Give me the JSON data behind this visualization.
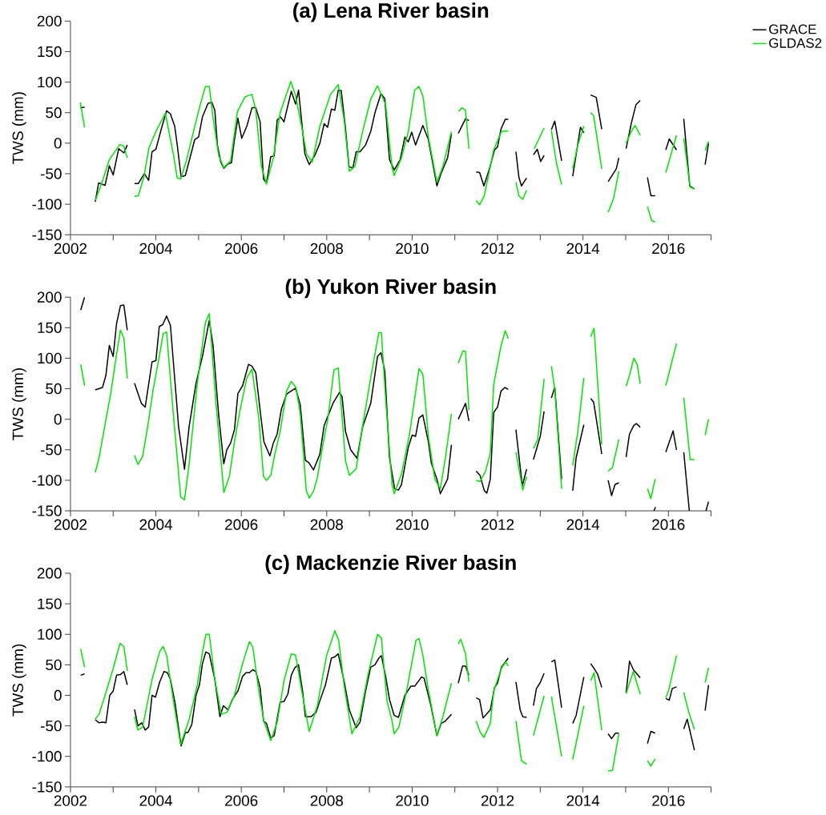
{
  "chart_data": [
    {
      "type": "line",
      "title": "(a) Lena River basin",
      "ylabel": "TWS (mm)",
      "xlim": [
        2002,
        2017
      ],
      "ylim": [
        -150,
        200
      ],
      "xticks": [
        2002,
        {
          "value": 2003,
          "label": null
        },
        2004,
        {
          "value": 2005,
          "label": null
        },
        2006,
        {
          "value": 2007,
          "label": null
        },
        2008,
        {
          "value": 2009,
          "label": null
        },
        2010,
        {
          "value": 2011,
          "label": null
        },
        2012,
        {
          "value": 2013,
          "label": null
        },
        2014,
        {
          "value": 2015,
          "label": null
        },
        2016,
        {
          "value": 2017,
          "label": null
        }
      ],
      "yticks": [
        -150,
        -100,
        -50,
        0,
        50,
        100,
        150,
        200
      ],
      "legend": "top right",
      "series": [
        {
          "name": "GRACE",
          "color": "#000000",
          "x": [
            2002.23,
            2002.33,
            2002.45,
            2002.58,
            2002.66,
            2002.81,
            2002.91,
            2003.0,
            2003.13,
            2003.25,
            2003.33,
            2003.42,
            2003.5,
            2003.59,
            2003.73,
            2003.83,
            2003.91,
            2004.0,
            2004.13,
            2004.25,
            2004.34,
            2004.44,
            2004.5,
            2004.59,
            2004.69,
            2004.78,
            2004.91,
            2005.0,
            2005.09,
            2005.22,
            2005.31,
            2005.38,
            2005.44,
            2005.52,
            2005.59,
            2005.69,
            2005.77,
            2005.84,
            2005.92,
            2006.01,
            2006.13,
            2006.25,
            2006.34,
            2006.44,
            2006.52,
            2006.59,
            2006.69,
            2006.77,
            2006.84,
            2006.92,
            2007.0,
            2007.17,
            2007.27,
            2007.34,
            2007.49,
            2007.59,
            2007.72,
            2007.84,
            2007.94,
            2008.02,
            2008.11,
            2008.19,
            2008.27,
            2008.34,
            2008.44,
            2008.52,
            2008.61,
            2008.69,
            2008.78,
            2008.91,
            2009.03,
            2009.13,
            2009.27,
            2009.36,
            2009.47,
            2009.58,
            2009.72,
            2009.83,
            2009.91,
            2009.99,
            2010.08,
            2010.25,
            2010.38,
            2010.58,
            2010.68,
            2010.83,
            2010.92,
            2011.0,
            2011.08,
            2011.25,
            2011.33,
            2011.42,
            2011.5,
            2011.58,
            2011.68,
            2011.81,
            2011.93,
            2012.0,
            2012.08,
            2012.18,
            2012.25,
            2012.34,
            2012.43,
            2012.5,
            2012.56,
            2012.68,
            2012.76,
            2012.84,
            2012.93,
            2013.01,
            2013.09,
            2013.18,
            2013.26,
            2013.34,
            2013.5,
            2013.63,
            2013.76,
            2013.94,
            2014.02,
            2014.1,
            2014.18,
            2014.31,
            2014.44,
            2014.52,
            2014.59,
            2014.78,
            2014.84,
            2014.93,
            2015.01,
            2015.13,
            2015.24,
            2015.34,
            2015.43,
            2015.51,
            2015.59,
            2015.69,
            2015.82,
            2015.94,
            2016.02,
            2016.19,
            2016.28,
            2016.36,
            2016.5,
            2016.61,
            2016.74,
            2016.86,
            2016.94
          ],
          "values": [
            58,
            59,
            null,
            -96,
            -65,
            -69,
            -37,
            -52,
            -9,
            -16,
            -3,
            null,
            -66,
            -66,
            -50,
            -61,
            -14,
            -10,
            24,
            53,
            48,
            28,
            -3,
            -55,
            -53,
            -29,
            6,
            10,
            43,
            65,
            67,
            54,
            -3,
            -31,
            -41,
            -34,
            -32,
            6,
            41,
            8,
            28,
            58,
            58,
            35,
            -59,
            -65,
            -22,
            -21,
            38,
            43,
            35,
            85,
            64,
            87,
            -18,
            -35,
            -20,
            0,
            32,
            26,
            56,
            54,
            87,
            86,
            24,
            -38,
            -41,
            -14,
            -14,
            -3,
            19,
            50,
            81,
            73,
            -27,
            -44,
            -27,
            10,
            2,
            18,
            -3,
            29,
            6,
            -70,
            -49,
            -24,
            15,
            null,
            16,
            40,
            37,
            null,
            -47,
            -48,
            -70,
            -42,
            -11,
            -6,
            23,
            39,
            39,
            null,
            -14,
            -56,
            -70,
            -57,
            null,
            -19,
            -10,
            -30,
            -20,
            null,
            22,
            36,
            -29,
            null,
            -54,
            26,
            17,
            null,
            79,
            75,
            23,
            null,
            -63,
            -42,
            -24,
            null,
            -9,
            32,
            63,
            70,
            null,
            -56,
            -86,
            -86,
            null,
            -11,
            7,
            -11,
            null,
            40,
            -70,
            -75,
            null,
            -35,
            0
          ]
        },
        {
          "name": "GLDAS2",
          "color": "#00e600",
          "x": [
            2002.23,
            2002.33,
            2002.45,
            2002.58,
            2002.72,
            2002.91,
            2003.16,
            2003.25,
            2003.33,
            2003.42,
            2003.5,
            2003.59,
            2003.72,
            2003.84,
            2004.0,
            2004.22,
            2004.28,
            2004.41,
            2004.5,
            2004.58,
            2004.72,
            2004.88,
            2005.03,
            2005.16,
            2005.25,
            2005.34,
            2005.47,
            2005.59,
            2005.75,
            2005.91,
            2006.09,
            2006.25,
            2006.34,
            2006.47,
            2006.59,
            2006.75,
            2006.91,
            2007.16,
            2007.27,
            2007.41,
            2007.53,
            2007.66,
            2007.84,
            2008.09,
            2008.27,
            2008.41,
            2008.53,
            2008.66,
            2008.84,
            2009.03,
            2009.19,
            2009.38,
            2009.53,
            2009.58,
            2009.75,
            2009.91,
            2010.06,
            2010.16,
            2010.25,
            2010.38,
            2010.58,
            2010.72,
            2010.92,
            2011.0,
            2011.09,
            2011.16,
            2011.25,
            2011.33,
            2011.42,
            2011.5,
            2011.58,
            2011.69,
            2011.91,
            2012.09,
            2012.25,
            2012.34,
            2012.43,
            2012.5,
            2012.59,
            2012.68,
            2012.76,
            2012.86,
            2013.09,
            2013.18,
            2013.26,
            2013.38,
            2013.5,
            2013.63,
            2013.76,
            2013.88,
            2014.02,
            2014.1,
            2014.18,
            2014.25,
            2014.44,
            2014.52,
            2014.59,
            2014.72,
            2014.84,
            2014.93,
            2015.01,
            2015.13,
            2015.22,
            2015.34,
            2015.43,
            2015.51,
            2015.61,
            2015.69,
            2015.82,
            2015.94,
            2016.19,
            2016.28,
            2016.36,
            2016.51,
            2016.61,
            2016.74,
            2016.86,
            2016.94
          ],
          "values": [
            67,
            26,
            null,
            -94,
            -68,
            -27,
            -2,
            -5,
            -24,
            null,
            -87,
            -86,
            -55,
            -7,
            19,
            49,
            28,
            -18,
            -57,
            -59,
            -27,
            19,
            61,
            93,
            93,
            41,
            -20,
            -40,
            -29,
            52,
            76,
            80,
            54,
            -38,
            -67,
            -24,
            50,
            101,
            78,
            28,
            -18,
            -31,
            28,
            80,
            96,
            37,
            -46,
            -38,
            19,
            72,
            94,
            63,
            -40,
            -53,
            -24,
            19,
            87,
            93,
            78,
            10,
            -64,
            -38,
            19,
            null,
            52,
            58,
            54,
            -9,
            null,
            -94,
            -101,
            -86,
            -11,
            19,
            20,
            null,
            -64,
            -86,
            -92,
            -77,
            null,
            -9,
            25,
            null,
            21,
            -33,
            -68,
            null,
            -42,
            -3,
            28,
            null,
            50,
            45,
            -42,
            null,
            -113,
            -90,
            -46,
            null,
            0,
            19,
            29,
            13,
            null,
            -104,
            -127,
            -129,
            null,
            -48,
            13,
            null,
            8,
            -72,
            -75,
            null,
            -12,
            3
          ]
        }
      ]
    },
    {
      "type": "line",
      "title": "(b) Yukon River basin",
      "ylabel": "TWS (mm)",
      "xlim": [
        2002,
        2017
      ],
      "ylim": [
        -150,
        200
      ],
      "xticks": [
        2002,
        {
          "value": 2003,
          "label": null
        },
        2004,
        {
          "value": 2005,
          "label": null
        },
        2006,
        {
          "value": 2007,
          "label": null
        },
        2008,
        {
          "value": 2009,
          "label": null
        },
        2010,
        {
          "value": 2011,
          "label": null
        },
        2012,
        {
          "value": 2013,
          "label": null
        },
        2014,
        {
          "value": 2015,
          "label": null
        },
        2016,
        {
          "value": 2017,
          "label": null
        }
      ],
      "yticks": [
        -150,
        -100,
        -50,
        0,
        50,
        100,
        150,
        200
      ],
      "series": [
        {
          "color": "#000000",
          "x": [
            2002.24,
            2002.33,
            2002.45,
            2002.58,
            2002.75,
            2002.83,
            2002.91,
            2003.0,
            2003.08,
            2003.17,
            2003.25,
            2003.33,
            2003.42,
            2003.5,
            2003.66,
            2003.75,
            2003.91,
            2004.0,
            2004.08,
            2004.16,
            2004.25,
            2004.34,
            2004.53,
            2004.67,
            2004.78,
            2004.94,
            2005.09,
            2005.25,
            2005.34,
            2005.47,
            2005.59,
            2005.66,
            2005.75,
            2005.84,
            2005.92,
            2006.03,
            2006.17,
            2006.25,
            2006.34,
            2006.44,
            2006.53,
            2006.67,
            2006.75,
            2006.84,
            2006.94,
            2007.06,
            2007.16,
            2007.27,
            2007.38,
            2007.5,
            2007.58,
            2007.69,
            2007.84,
            2007.94,
            2008.16,
            2008.3,
            2008.36,
            2008.44,
            2008.56,
            2008.71,
            2008.84,
            2009.03,
            2009.19,
            2009.27,
            2009.36,
            2009.47,
            2009.59,
            2009.68,
            2009.75,
            2009.91,
            2010.0,
            2010.08,
            2010.16,
            2010.25,
            2010.38,
            2010.45,
            2010.58,
            2010.66,
            2010.83,
            2010.92,
            2011.0,
            2011.08,
            2011.25,
            2011.33,
            2011.42,
            2011.5,
            2011.59,
            2011.69,
            2011.75,
            2011.83,
            2011.91,
            2012.0,
            2012.08,
            2012.17,
            2012.25,
            2012.34,
            2012.43,
            2012.58,
            2012.68,
            2012.76,
            2012.84,
            2013.0,
            2013.09,
            2013.18,
            2013.26,
            2013.34,
            2013.5,
            2013.63,
            2013.76,
            2013.84,
            2014.02,
            2014.1,
            2014.18,
            2014.25,
            2014.44,
            2014.52,
            2014.59,
            2014.67,
            2014.75,
            2014.84,
            2014.93,
            2015.01,
            2015.09,
            2015.19,
            2015.25,
            2015.34,
            2015.5,
            2015.66,
            2015.7,
            2015.82,
            2015.94,
            2016.11,
            2016.19,
            2016.28,
            2016.36,
            2016.49,
            2016.7,
            2016.88,
            2016.94
          ],
          "values": [
            179,
            200,
            null,
            48,
            52,
            72,
            121,
            103,
            157,
            186,
            187,
            146,
            null,
            59,
            26,
            20,
            94,
            96,
            152,
            155,
            169,
            154,
            -11,
            -82,
            -11,
            59,
            103,
            162,
            120,
            7,
            -73,
            -50,
            -39,
            -17,
            42,
            55,
            90,
            87,
            76,
            15,
            -37,
            -60,
            -39,
            -24,
            17,
            41,
            46,
            51,
            24,
            -67,
            -71,
            -83,
            -57,
            -10,
            28,
            44,
            37,
            -20,
            -50,
            -64,
            -13,
            26,
            103,
            109,
            79,
            -63,
            -114,
            -116,
            -107,
            -46,
            -26,
            -28,
            2,
            7,
            -37,
            -72,
            -98,
            -122,
            -98,
            -42,
            null,
            0,
            26,
            -3,
            null,
            -85,
            -92,
            -117,
            -121,
            -98,
            11,
            20,
            46,
            52,
            49,
            null,
            -17,
            -109,
            -82,
            null,
            -66,
            -28,
            13,
            null,
            35,
            52,
            -98,
            null,
            -117,
            -63,
            -9,
            null,
            34,
            28,
            -57,
            null,
            -100,
            -125,
            -107,
            -104,
            null,
            -62,
            -24,
            -10,
            -7,
            -13,
            null,
            -150,
            -144,
            null,
            -54,
            -19,
            -50,
            null,
            -54,
            -150,
            null,
            -150,
            -135
          ]
        },
        {
          "color": "#00e600",
          "x": [
            2002.24,
            2002.33,
            2002.45,
            2002.58,
            2002.67,
            2002.78,
            2002.94,
            2003.08,
            2003.17,
            2003.25,
            2003.33,
            2003.42,
            2003.5,
            2003.58,
            2003.69,
            2003.81,
            2003.94,
            2004.09,
            2004.17,
            2004.25,
            2004.41,
            2004.58,
            2004.67,
            2004.78,
            2004.97,
            2005.16,
            2005.25,
            2005.41,
            2005.59,
            2005.72,
            2005.84,
            2005.97,
            2006.13,
            2006.25,
            2006.41,
            2006.52,
            2006.59,
            2006.69,
            2006.78,
            2006.91,
            2007.06,
            2007.17,
            2007.28,
            2007.38,
            2007.52,
            2007.59,
            2007.69,
            2007.78,
            2007.91,
            2008.03,
            2008.17,
            2008.27,
            2008.44,
            2008.53,
            2008.69,
            2008.84,
            2009.03,
            2009.22,
            2009.28,
            2009.38,
            2009.53,
            2009.58,
            2009.75,
            2009.94,
            2010.16,
            2010.25,
            2010.38,
            2010.53,
            2010.66,
            2010.78,
            2010.92,
            2011.0,
            2011.08,
            2011.19,
            2011.25,
            2011.33,
            2011.42,
            2011.5,
            2011.59,
            2011.72,
            2011.83,
            2011.91,
            2012.08,
            2012.18,
            2012.25,
            2012.34,
            2012.43,
            2012.5,
            2012.59,
            2012.68,
            2012.76,
            2012.84,
            2012.94,
            2013.09,
            2013.18,
            2013.26,
            2013.34,
            2013.5,
            2013.63,
            2013.76,
            2013.88,
            2014.02,
            2014.1,
            2014.18,
            2014.26,
            2014.44,
            2014.52,
            2014.59,
            2014.69,
            2014.84,
            2014.93,
            2015.01,
            2015.09,
            2015.19,
            2015.27,
            2015.34,
            2015.43,
            2015.51,
            2015.59,
            2015.69,
            2015.82,
            2015.94,
            2016.19,
            2016.28,
            2016.36,
            2016.51,
            2016.61,
            2016.74,
            2016.86,
            2016.94
          ],
          "values": [
            90,
            55,
            null,
            -87,
            -63,
            -20,
            41,
            107,
            146,
            133,
            67,
            null,
            -59,
            -74,
            -61,
            -11,
            50,
            107,
            140,
            143,
            7,
            -127,
            -132,
            -72,
            59,
            159,
            173,
            24,
            -120,
            -94,
            -37,
            15,
            68,
            82,
            2,
            -94,
            -100,
            -92,
            -59,
            -20,
            46,
            62,
            52,
            9,
            -116,
            -129,
            -118,
            -96,
            -42,
            2,
            81,
            84,
            -68,
            -92,
            -81,
            -11,
            68,
            142,
            142,
            33,
            -107,
            -122,
            -90,
            -24,
            83,
            74,
            -28,
            -98,
            -114,
            -63,
            9,
            null,
            92,
            112,
            111,
            15,
            null,
            -100,
            -102,
            -85,
            -55,
            57,
            120,
            145,
            132,
            null,
            -54,
            -81,
            -116,
            -94,
            null,
            -48,
            -33,
            66,
            null,
            87,
            50,
            -114,
            null,
            -76,
            -20,
            68,
            null,
            135,
            149,
            -41,
            null,
            -85,
            -79,
            -33,
            null,
            54,
            72,
            100,
            90,
            58,
            null,
            -114,
            -130,
            -98,
            null,
            55,
            124,
            null,
            35,
            -66,
            -66,
            null,
            -26,
            0
          ]
        }
      ]
    },
    {
      "type": "line",
      "title": "(c) Mackenzie River basin",
      "ylabel": "TWS (mm)",
      "xlim": [
        2002,
        2017
      ],
      "ylim": [
        -150,
        200
      ],
      "xticks": [
        2002,
        {
          "value": 2003,
          "label": null
        },
        2004,
        {
          "value": 2005,
          "label": null
        },
        2006,
        {
          "value": 2007,
          "label": null
        },
        2008,
        {
          "value": 2009,
          "label": null
        },
        2010,
        {
          "value": 2011,
          "label": null
        },
        2012,
        {
          "value": 2013,
          "label": null
        },
        2014,
        {
          "value": 2015,
          "label": null
        },
        2016,
        {
          "value": 2017,
          "label": null
        }
      ],
      "yticks": [
        -150,
        -100,
        -50,
        0,
        50,
        100,
        150,
        200
      ],
      "series": [
        {
          "color": "#000000",
          "x": [
            2002.24,
            2002.33,
            2002.45,
            2002.58,
            2002.67,
            2002.75,
            2002.83,
            2002.92,
            2003.0,
            2003.08,
            2003.17,
            2003.25,
            2003.33,
            2003.42,
            2003.5,
            2003.58,
            2003.67,
            2003.75,
            2003.83,
            2003.91,
            2003.99,
            2004.09,
            2004.19,
            2004.27,
            2004.34,
            2004.45,
            2004.59,
            2004.69,
            2004.75,
            2004.84,
            2004.94,
            2005.02,
            2005.09,
            2005.17,
            2005.25,
            2005.38,
            2005.5,
            2005.58,
            2005.69,
            2005.79,
            2005.92,
            2006.03,
            2006.11,
            2006.19,
            2006.27,
            2006.34,
            2006.44,
            2006.52,
            2006.59,
            2006.69,
            2006.77,
            2006.91,
            2007.0,
            2007.09,
            2007.17,
            2007.25,
            2007.34,
            2007.44,
            2007.5,
            2007.63,
            2007.75,
            2007.84,
            2007.97,
            2008.11,
            2008.19,
            2008.27,
            2008.41,
            2008.53,
            2008.69,
            2008.78,
            2008.91,
            2009.03,
            2009.13,
            2009.22,
            2009.28,
            2009.38,
            2009.47,
            2009.58,
            2009.68,
            2009.83,
            2009.97,
            2010.06,
            2010.22,
            2010.28,
            2010.44,
            2010.58,
            2010.68,
            2010.78,
            2010.92,
            2011.0,
            2011.08,
            2011.18,
            2011.25,
            2011.33,
            2011.42,
            2011.5,
            2011.58,
            2011.66,
            2011.83,
            2011.93,
            2012.0,
            2012.09,
            2012.25,
            2012.34,
            2012.43,
            2012.53,
            2012.59,
            2012.68,
            2012.76,
            2012.84,
            2012.91,
            2013.0,
            2013.09,
            2013.18,
            2013.26,
            2013.34,
            2013.5,
            2013.63,
            2013.76,
            2013.84,
            2014.02,
            2014.1,
            2014.18,
            2014.25,
            2014.34,
            2014.44,
            2014.52,
            2014.59,
            2014.67,
            2014.76,
            2014.84,
            2014.93,
            2015.01,
            2015.09,
            2015.18,
            2015.34,
            2015.43,
            2015.51,
            2015.59,
            2015.69,
            2015.82,
            2015.94,
            2016.02,
            2016.09,
            2016.19,
            2016.28,
            2016.36,
            2016.44,
            2016.61,
            2016.74,
            2016.86,
            2016.94
          ],
          "values": [
            33,
            35,
            null,
            -40,
            -45,
            -44,
            -45,
            0,
            7,
            33,
            34,
            39,
            17,
            null,
            -23,
            -50,
            -45,
            -57,
            -52,
            0,
            -3,
            22,
            39,
            37,
            26,
            -13,
            -83,
            -61,
            -61,
            -48,
            0,
            17,
            52,
            71,
            68,
            26,
            -35,
            -17,
            -24,
            -7,
            7,
            31,
            37,
            37,
            42,
            39,
            13,
            -42,
            -46,
            -70,
            -66,
            -11,
            -10,
            2,
            33,
            45,
            50,
            4,
            -35,
            -35,
            -28,
            -9,
            17,
            61,
            63,
            68,
            22,
            -24,
            -53,
            -44,
            7,
            46,
            50,
            61,
            65,
            31,
            -7,
            -33,
            -36,
            0,
            15,
            15,
            30,
            28,
            -17,
            -66,
            -46,
            -42,
            -31,
            null,
            20,
            48,
            48,
            33,
            null,
            -4,
            -7,
            -37,
            -24,
            13,
            20,
            46,
            61,
            null,
            22,
            -24,
            -35,
            -36,
            null,
            -17,
            11,
            21,
            36,
            null,
            55,
            58,
            -20,
            null,
            -46,
            -33,
            30,
            null,
            52,
            45,
            35,
            13,
            null,
            -63,
            -71,
            -62,
            -62,
            null,
            4,
            56,
            42,
            29,
            null,
            -79,
            -59,
            -62,
            null,
            -5,
            -8,
            11,
            14,
            null,
            -55,
            -39,
            -90,
            null,
            -25,
            17
          ]
        },
        {
          "color": "#00e600",
          "x": [
            2002.24,
            2002.33,
            2002.45,
            2002.58,
            2002.67,
            2002.81,
            2003.0,
            2003.16,
            2003.25,
            2003.33,
            2003.42,
            2003.5,
            2003.58,
            2003.69,
            2003.91,
            2004.09,
            2004.17,
            2004.25,
            2004.41,
            2004.58,
            2004.78,
            2004.97,
            2005.09,
            2005.17,
            2005.25,
            2005.38,
            2005.53,
            2005.66,
            2005.84,
            2006.03,
            2006.19,
            2006.27,
            2006.41,
            2006.53,
            2006.69,
            2006.84,
            2007.0,
            2007.17,
            2007.27,
            2007.41,
            2007.59,
            2007.78,
            2008.0,
            2008.19,
            2008.28,
            2008.41,
            2008.59,
            2008.78,
            2008.97,
            2009.19,
            2009.28,
            2009.41,
            2009.53,
            2009.58,
            2009.69,
            2009.88,
            2010.09,
            2010.16,
            2010.25,
            2010.38,
            2010.58,
            2010.72,
            2010.92,
            2011.0,
            2011.08,
            2011.14,
            2011.25,
            2011.33,
            2011.42,
            2011.5,
            2011.59,
            2011.68,
            2011.83,
            2011.91,
            2012.09,
            2012.19,
            2012.25,
            2012.34,
            2012.43,
            2012.56,
            2012.68,
            2012.76,
            2012.84,
            2013.09,
            2013.18,
            2013.26,
            2013.5,
            2013.63,
            2013.76,
            2014.02,
            2014.1,
            2014.18,
            2014.26,
            2014.44,
            2014.52,
            2014.59,
            2014.69,
            2014.84,
            2014.93,
            2015.01,
            2015.18,
            2015.34,
            2015.43,
            2015.51,
            2015.59,
            2015.69,
            2015.82,
            2015.94,
            2016.01,
            2016.19,
            2016.28,
            2016.36,
            2016.47,
            2016.61,
            2016.74,
            2016.86,
            2016.94
          ],
          "values": [
            76,
            46,
            null,
            -39,
            -31,
            0,
            44,
            85,
            80,
            40,
            null,
            -35,
            -57,
            -52,
            26,
            72,
            80,
            66,
            -9,
            -81,
            -39,
            17,
            70,
            100,
            100,
            26,
            -31,
            -28,
            0,
            52,
            88,
            79,
            7,
            -43,
            -74,
            -44,
            24,
            68,
            66,
            9,
            -59,
            -17,
            66,
            106,
            90,
            15,
            -63,
            -35,
            35,
            100,
            94,
            -9,
            -42,
            -63,
            -52,
            11,
            90,
            93,
            66,
            9,
            -66,
            -35,
            20,
            null,
            84,
            92,
            68,
            22,
            null,
            -42,
            -60,
            -69,
            -46,
            7,
            44,
            55,
            48,
            null,
            -42,
            -107,
            -113,
            null,
            -66,
            -1,
            null,
            -2,
            -100,
            null,
            -105,
            -17,
            null,
            24,
            37,
            -57,
            null,
            -124,
            -123,
            -63,
            null,
            3,
            39,
            2,
            null,
            -107,
            -116,
            -104,
            null,
            -4,
            9,
            65,
            null,
            5,
            -26,
            -56,
            null,
            21,
            45
          ]
        }
      ]
    }
  ]
}
